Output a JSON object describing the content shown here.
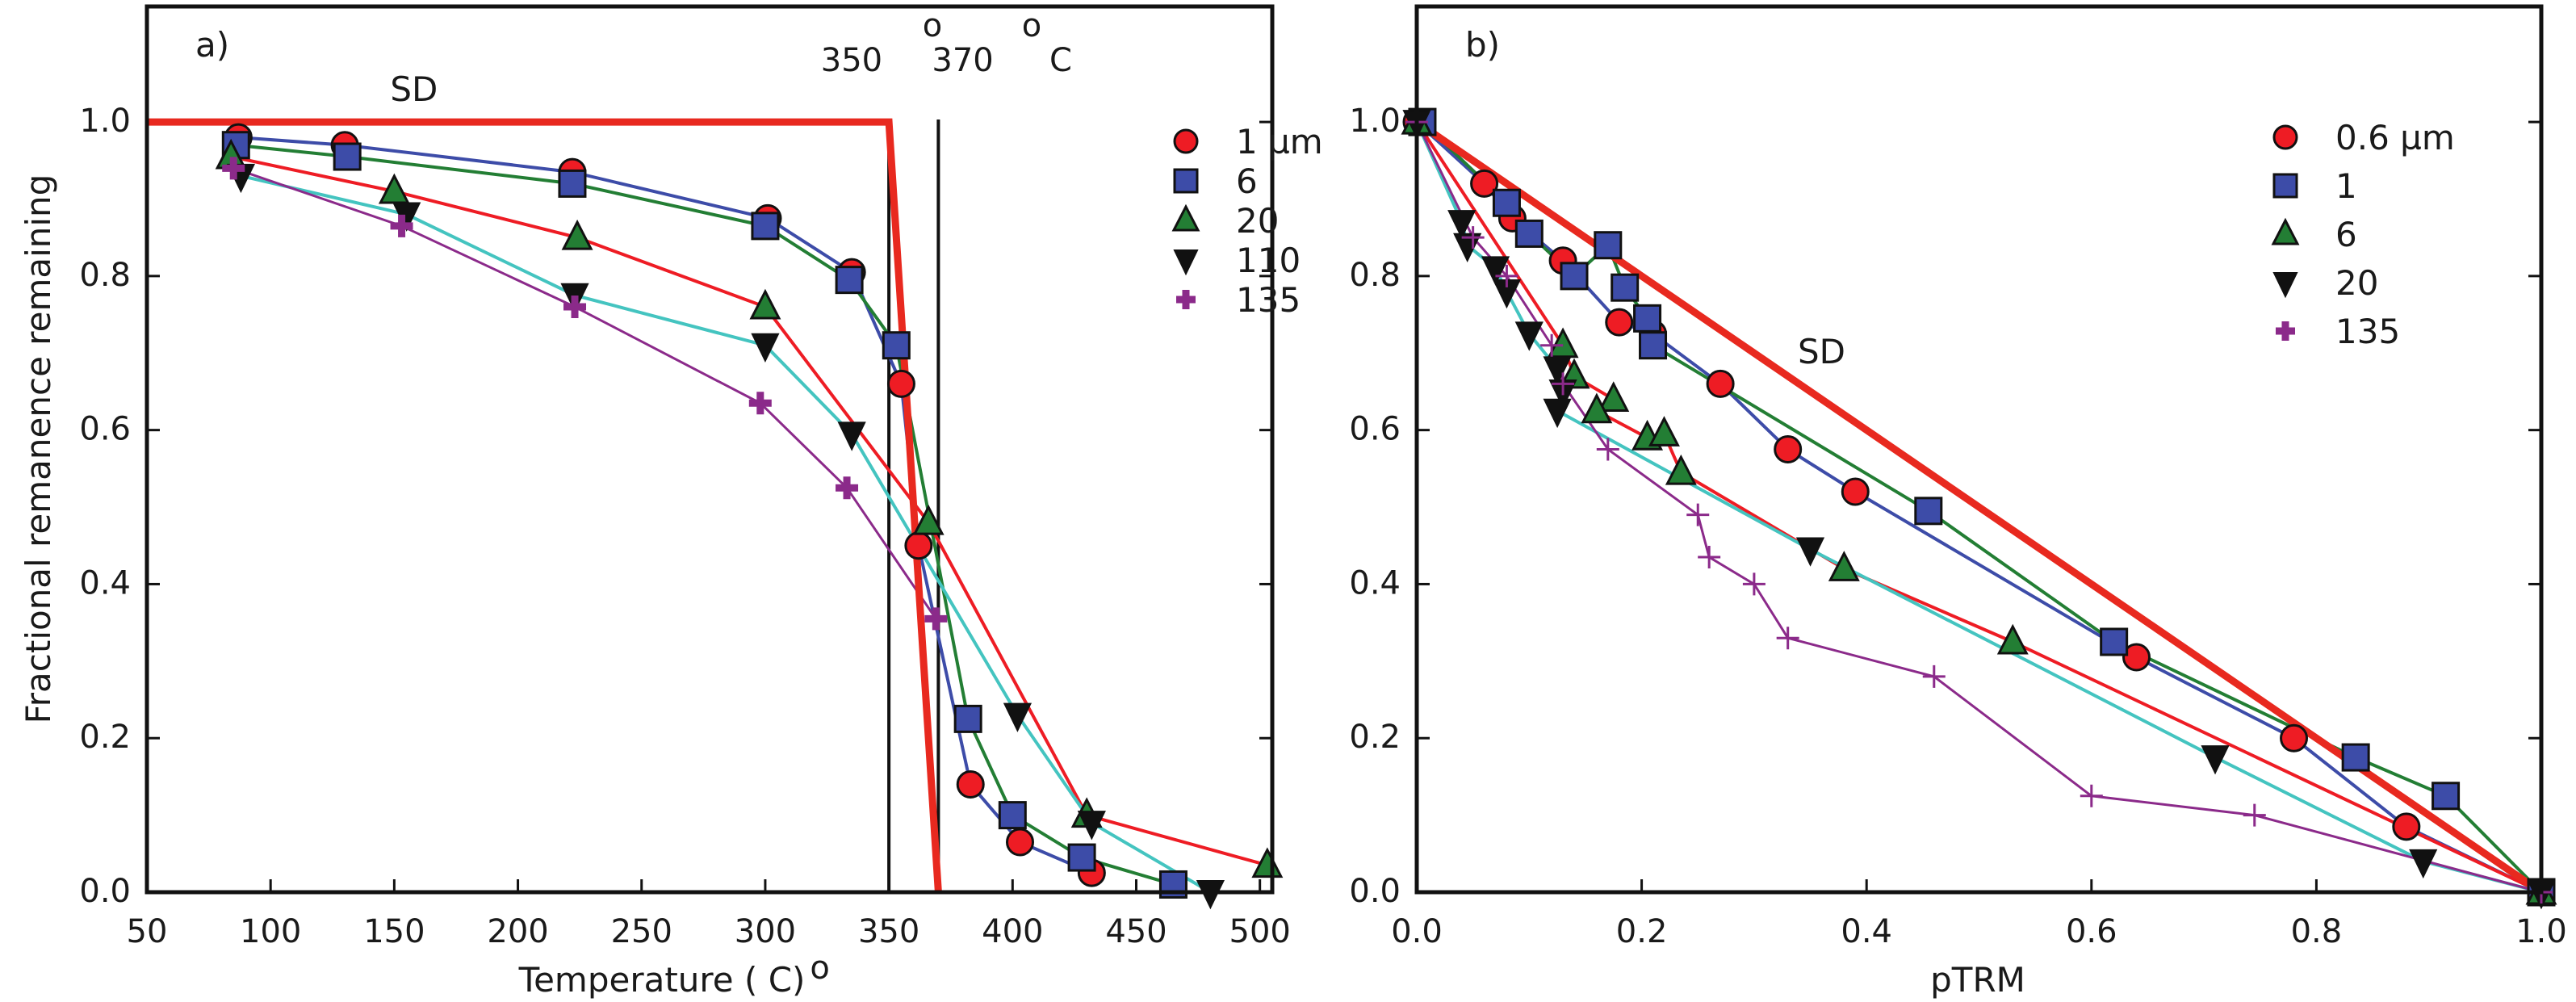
{
  "colors": {
    "red": "#ee1c24",
    "blue": "#3d4ca8",
    "green": "#237e34",
    "black": "#111111",
    "purple": "#8b2a8a",
    "cyan": "#44c4c0",
    "sd": "#e8291f"
  },
  "chart_data": [
    {
      "type": "line",
      "panel_label": "a)",
      "xlabel": "Temperature ( C)",
      "xlabel_sup": "o",
      "ylabel": "Fractional remanence remaining",
      "xlim": [
        50,
        505
      ],
      "ylim": [
        0,
        1.15
      ],
      "xticks": [
        "50",
        "100",
        "150",
        "200",
        "250",
        "300",
        "350",
        "400",
        "450",
        "500"
      ],
      "yticks": [
        "0.0",
        "0.2",
        "0.4",
        "0.6",
        "0.8",
        "1.0"
      ],
      "grid": false,
      "legend_position": "top-right",
      "annotations": {
        "sd": "SD",
        "t1": "350",
        "t2": "370",
        "deg1": "o",
        "deg2": "o",
        "unit": "C"
      },
      "vlines": [
        350,
        370
      ],
      "sd_line": {
        "x": [
          50,
          350,
          370
        ],
        "y": [
          1.0,
          1.0,
          0.0
        ]
      },
      "series": [
        {
          "name": "1 µm",
          "marker": "circle",
          "color": "red",
          "line_color": "blue",
          "x": [
            87,
            130,
            222,
            301,
            335,
            355,
            362,
            383,
            403,
            432
          ],
          "y": [
            0.98,
            0.97,
            0.935,
            0.875,
            0.805,
            0.66,
            0.45,
            0.14,
            0.065,
            0.025
          ]
        },
        {
          "name": "6",
          "marker": "square",
          "color": "blue",
          "line_color": "green",
          "x": [
            86,
            131,
            222,
            300,
            334,
            353,
            382,
            400,
            428,
            465
          ],
          "y": [
            0.97,
            0.955,
            0.92,
            0.865,
            0.795,
            0.71,
            0.225,
            0.1,
            0.045,
            0.01
          ]
        },
        {
          "name": "20",
          "marker": "triangle-up",
          "color": "green",
          "line_color": "red",
          "x": [
            84,
            150,
            224,
            300,
            366,
            430,
            503
          ],
          "y": [
            0.955,
            0.91,
            0.85,
            0.76,
            0.48,
            0.1,
            0.035
          ]
        },
        {
          "name": "110",
          "marker": "triangle-down",
          "color": "black",
          "line_color": "cyan",
          "x": [
            88,
            155,
            223,
            300,
            335,
            402,
            432,
            480
          ],
          "y": [
            0.93,
            0.88,
            0.775,
            0.71,
            0.595,
            0.23,
            0.09,
            0.0
          ]
        },
        {
          "name": "135",
          "marker": "plus",
          "color": "purple",
          "line_color": "purple",
          "x": [
            85,
            153,
            223,
            298,
            333,
            369
          ],
          "y": [
            0.94,
            0.865,
            0.76,
            0.635,
            0.525,
            0.355
          ]
        }
      ]
    },
    {
      "type": "line",
      "panel_label": "b)",
      "xlabel": "pTRM",
      "ylabel": "",
      "xlim": [
        0,
        1.0
      ],
      "ylim": [
        0,
        1.15
      ],
      "xticks": [
        "0.0",
        "0.2",
        "0.4",
        "0.6",
        "0.8",
        "1.0"
      ],
      "yticks": [
        "0.0",
        "0.2",
        "0.4",
        "0.6",
        "0.8",
        "1.0"
      ],
      "grid": false,
      "legend_position": "top-right",
      "annotations": {
        "sd": "SD"
      },
      "sd_line": {
        "x": [
          0,
          1
        ],
        "y": [
          1,
          0
        ]
      },
      "series": [
        {
          "name": "0.6  µm",
          "marker": "circle",
          "color": "red",
          "line_color": "blue",
          "x": [
            0,
            0.06,
            0.085,
            0.13,
            0.18,
            0.21,
            0.27,
            0.33,
            0.39,
            0.64,
            0.78,
            0.88,
            1.0
          ],
          "y": [
            1,
            0.92,
            0.875,
            0.82,
            0.74,
            0.725,
            0.66,
            0.575,
            0.52,
            0.305,
            0.2,
            0.085,
            0
          ]
        },
        {
          "name": "1",
          "marker": "square",
          "color": "blue",
          "line_color": "green",
          "x": [
            0.005,
            0.08,
            0.1,
            0.14,
            0.17,
            0.185,
            0.205,
            0.21,
            0.455,
            0.62,
            0.835,
            0.915,
            1.0
          ],
          "y": [
            1,
            0.895,
            0.855,
            0.8,
            0.84,
            0.785,
            0.745,
            0.71,
            0.495,
            0.325,
            0.175,
            0.125,
            0
          ]
        },
        {
          "name": "6",
          "marker": "triangle-up",
          "color": "green",
          "line_color": "red",
          "x": [
            0,
            0.13,
            0.14,
            0.175,
            0.16,
            0.205,
            0.22,
            0.235,
            0.38,
            0.53,
            1.0
          ],
          "y": [
            1,
            0.71,
            0.67,
            0.64,
            0.625,
            0.59,
            0.595,
            0.545,
            0.42,
            0.325,
            0
          ]
        },
        {
          "name": "20",
          "marker": "triangle-down",
          "color": "black",
          "line_color": "cyan",
          "x": [
            0,
            0.04,
            0.045,
            0.07,
            0.08,
            0.1,
            0.125,
            0.13,
            0.125,
            0.35,
            0.71,
            0.895,
            1.0
          ],
          "y": [
            1,
            0.87,
            0.84,
            0.81,
            0.78,
            0.725,
            0.68,
            0.65,
            0.625,
            0.445,
            0.175,
            0.04,
            0
          ]
        },
        {
          "name": "135",
          "marker": "thin-plus",
          "color": "purple",
          "line_color": "purple",
          "x": [
            0,
            0.05,
            0.08,
            0.12,
            0.13,
            0.17,
            0.25,
            0.26,
            0.3,
            0.33,
            0.46,
            0.6,
            0.745,
            1.0
          ],
          "y": [
            1,
            0.85,
            0.8,
            0.71,
            0.66,
            0.575,
            0.49,
            0.435,
            0.4,
            0.33,
            0.28,
            0.125,
            0.1,
            0
          ]
        }
      ]
    }
  ]
}
